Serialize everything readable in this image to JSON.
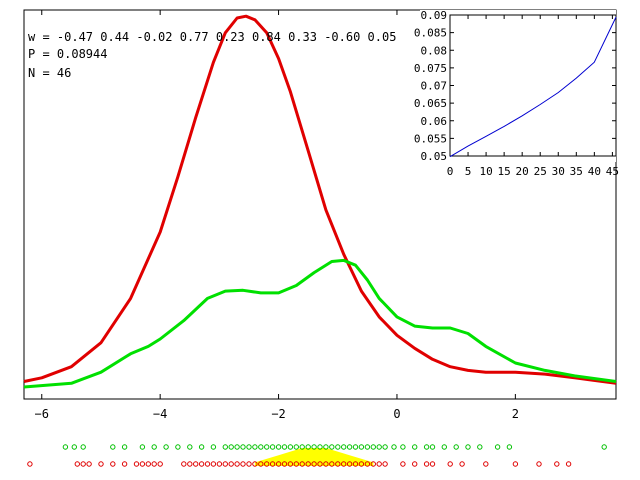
{
  "annotations": {
    "w_line": "w = -0.47 0.44 -0.02 0.77 0.23 0.84 0.33 -0.60 0.05",
    "p_line": "P = 0.08944",
    "n_line": "N = 46"
  },
  "chart_data": [
    {
      "type": "line",
      "title": "",
      "xlabel": "",
      "ylabel": "",
      "xlim": [
        -6.3,
        3.7
      ],
      "ylim": [
        0,
        1
      ],
      "x_ticks": [
        -6,
        -4,
        -2,
        0,
        2
      ],
      "x_tick_labels": [
        "−6",
        "−4",
        "−2",
        "0",
        "2"
      ],
      "y_ticks_shown": false,
      "grid": false,
      "series": [
        {
          "color": "#e00000",
          "x": [
            -6.3,
            -6.0,
            -5.5,
            -5.0,
            -4.5,
            -4.0,
            -3.7,
            -3.4,
            -3.1,
            -2.9,
            -2.7,
            -2.55,
            -2.4,
            -2.2,
            -2.0,
            -1.8,
            -1.5,
            -1.2,
            -0.9,
            -0.6,
            -0.3,
            0.0,
            0.3,
            0.6,
            0.9,
            1.2,
            1.5,
            2.0,
            2.5,
            3.0,
            3.7
          ],
          "values": [
            0.015,
            0.025,
            0.055,
            0.12,
            0.24,
            0.42,
            0.57,
            0.73,
            0.88,
            0.96,
            1.0,
            1.005,
            0.995,
            0.96,
            0.89,
            0.8,
            0.64,
            0.48,
            0.36,
            0.26,
            0.19,
            0.14,
            0.105,
            0.075,
            0.055,
            0.045,
            0.04,
            0.04,
            0.035,
            0.025,
            0.01
          ]
        },
        {
          "color": "#00e000",
          "x": [
            -6.3,
            -5.5,
            -5.0,
            -4.5,
            -4.2,
            -4.0,
            -3.6,
            -3.2,
            -2.9,
            -2.6,
            -2.3,
            -2.0,
            -1.7,
            -1.4,
            -1.1,
            -0.9,
            -0.7,
            -0.5,
            -0.3,
            0.0,
            0.3,
            0.6,
            0.9,
            1.2,
            1.5,
            2.0,
            2.5,
            3.0,
            3.7
          ],
          "values": [
            0.0,
            0.01,
            0.04,
            0.09,
            0.11,
            0.13,
            0.18,
            0.24,
            0.26,
            0.262,
            0.255,
            0.255,
            0.275,
            0.31,
            0.34,
            0.343,
            0.33,
            0.29,
            0.24,
            0.19,
            0.165,
            0.16,
            0.16,
            0.145,
            0.11,
            0.065,
            0.045,
            0.03,
            0.015
          ]
        }
      ],
      "rug": [
        {
          "color": "#00c000",
          "x": [
            -5.6,
            -5.45,
            -5.3,
            -4.8,
            -4.6,
            -4.3,
            -4.1,
            -3.9,
            -3.7,
            -3.5,
            -3.3,
            -3.1,
            -2.9,
            -2.8,
            -2.7,
            -2.6,
            -2.5,
            -2.4,
            -2.3,
            -2.2,
            -2.1,
            -2.0,
            -1.9,
            -1.8,
            -1.7,
            -1.6,
            -1.5,
            -1.4,
            -1.3,
            -1.2,
            -1.1,
            -1.0,
            -0.9,
            -0.8,
            -0.7,
            -0.6,
            -0.5,
            -0.4,
            -0.3,
            -0.2,
            -0.05,
            0.1,
            0.3,
            0.5,
            0.6,
            0.8,
            1.0,
            1.2,
            1.4,
            1.7,
            1.9,
            3.5
          ]
        },
        {
          "color": "#e00000",
          "x": [
            -6.2,
            -5.4,
            -5.3,
            -5.2,
            -5.0,
            -4.8,
            -4.6,
            -4.4,
            -4.3,
            -4.2,
            -4.1,
            -4.0,
            -3.6,
            -3.5,
            -3.4,
            -3.3,
            -3.2,
            -3.1,
            -3.0,
            -2.9,
            -2.8,
            -2.7,
            -2.6,
            -2.5,
            -2.4,
            -2.3,
            -2.2,
            -2.1,
            -2.0,
            -1.9,
            -1.8,
            -1.7,
            -1.6,
            -1.5,
            -1.4,
            -1.3,
            -1.2,
            -1.1,
            -1.0,
            -0.9,
            -0.8,
            -0.7,
            -0.6,
            -0.5,
            -0.4,
            -0.3,
            -0.2,
            0.1,
            0.3,
            0.5,
            0.6,
            0.9,
            1.1,
            1.5,
            2.0,
            2.4,
            2.7,
            2.9
          ]
        }
      ],
      "density_band": {
        "color": "#ffff00",
        "x": [
          -2.4,
          -2.0,
          -1.6,
          -1.2,
          -0.8,
          -0.4
        ],
        "values": [
          0.2,
          0.6,
          1.0,
          1.0,
          0.6,
          0.2
        ]
      }
    },
    {
      "type": "line",
      "title": "",
      "xlabel": "",
      "ylabel": "",
      "xlim": [
        0,
        46
      ],
      "ylim": [
        0.05,
        0.09
      ],
      "x_ticks": [
        0,
        5,
        10,
        15,
        20,
        25,
        30,
        35,
        40,
        45
      ],
      "x_tick_labels": [
        "0",
        "5",
        "10",
        "15",
        "20",
        "25",
        "30",
        "35",
        "40",
        "45"
      ],
      "y_ticks": [
        0.05,
        0.055,
        0.06,
        0.065,
        0.07,
        0.075,
        0.08,
        0.085,
        0.09
      ],
      "y_tick_labels": [
        "0.05",
        "0.055",
        "0.06",
        "0.065",
        "0.07",
        "0.075",
        "0.08",
        "0.085",
        "0.09"
      ],
      "series": [
        {
          "color": "#0000d0",
          "x": [
            0,
            5,
            10,
            15,
            20,
            25,
            30,
            35,
            40,
            46
          ],
          "values": [
            0.0498,
            0.0528,
            0.0556,
            0.0584,
            0.0614,
            0.0646,
            0.068,
            0.0721,
            0.0766,
            0.0894
          ]
        }
      ]
    }
  ]
}
